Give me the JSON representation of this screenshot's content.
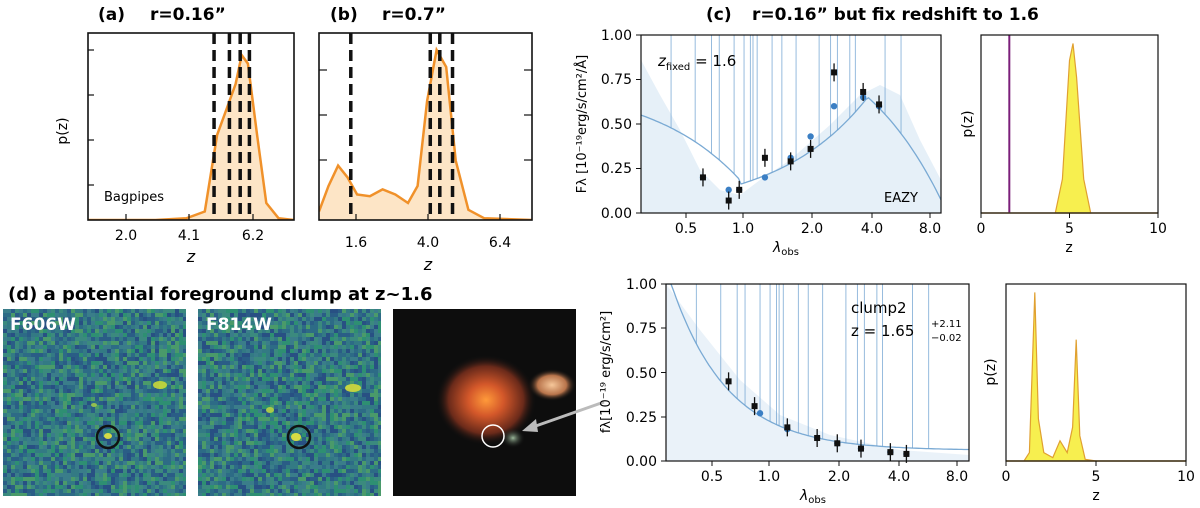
{
  "panel_a": {
    "label": "(a)",
    "title": "r=0.16”",
    "annotation": "Bagpipes",
    "xlabel": "z",
    "ylabel": "p(z)",
    "ticks": [
      "2.0",
      "4.1",
      "6.2"
    ]
  },
  "panel_b": {
    "label": "(b)",
    "title": "r=0.7”",
    "xlabel": "z",
    "ticks": [
      "1.6",
      "4.0",
      "6.4"
    ]
  },
  "panel_c": {
    "label": "(c)",
    "title": "r=0.16” but fix redshift to 1.6",
    "zfixed": "z",
    "zfixed_sub": "fixed",
    "zfixed_val": " = 1.6",
    "annotation": "EAZY",
    "ylabel": "Fλ [10⁻¹⁹erg/s/cm²/Å]",
    "xlabel": "λ",
    "xlabel_sub": "obs",
    "yticks": [
      "1.00",
      "0.75",
      "0.50",
      "0.25",
      "0.00"
    ],
    "xticks": [
      "0.5",
      "1.0",
      "2.0",
      "4.0",
      "8.0"
    ],
    "pz_ylabel": "p(z)",
    "pz_xlabel": "z",
    "pz_xticks": [
      "0",
      "5",
      "10"
    ]
  },
  "panel_d": {
    "label": "(d) a potential foreground clump at z~1.6",
    "img1": "F606W",
    "img2": "F814W",
    "annotation_name": "clump2",
    "annotation_z": "z = 1.65",
    "annotation_z_up": "+2.11",
    "annotation_z_low": "−0.02",
    "ylabel": "fλ[10⁻¹⁹ erg/s/cm²]",
    "xlabel": "λ",
    "xlabel_sub": "obs",
    "yticks": [
      "1.00",
      "0.75",
      "0.50",
      "0.25",
      "0.00"
    ],
    "xticks": [
      "0.5",
      "1.0",
      "2.0",
      "4.0",
      "8.0"
    ],
    "pz_ylabel": "p(z)",
    "pz_xlabel": "z",
    "pz_xticks": [
      "0",
      "5",
      "10"
    ]
  },
  "colors": {
    "orange": "#f0912a",
    "orange_fill": "#fde5c6",
    "blue": "#5b95c8",
    "light_blue": "#a9c8e3",
    "yellow": "#f7ef4f",
    "purple": "#7b1f7a"
  },
  "chart_data": [
    {
      "type": "area",
      "name": "pz-bagpipes-r016",
      "x": [
        0.8,
        2,
        3,
        4,
        4.6,
        5,
        5.3,
        5.6,
        5.8,
        6,
        6.3,
        6.6,
        7,
        7.5
      ],
      "y": [
        0,
        0,
        0,
        0.01,
        0.05,
        0.5,
        0.65,
        0.8,
        0.97,
        0.92,
        0.5,
        0.1,
        0.01,
        0
      ],
      "vlines": [
        4.9,
        5.4,
        5.75,
        6.05
      ],
      "xlim": [
        0.8,
        7.5
      ]
    },
    {
      "type": "area",
      "name": "pz-r07",
      "x": [
        0.8,
        1.1,
        1.4,
        1.7,
        2,
        2.4,
        2.8,
        3.2,
        3.6,
        3.9,
        4.2,
        4.5,
        4.8,
        5.1,
        5.5,
        6,
        7.5
      ],
      "y": [
        0.05,
        0.2,
        0.32,
        0.25,
        0.15,
        0.14,
        0.18,
        0.15,
        0.1,
        0.2,
        0.7,
        1.0,
        0.9,
        0.35,
        0.06,
        0.01,
        0
      ],
      "vlines": [
        1.8,
        4.3,
        4.6,
        5.0
      ],
      "xlim": [
        0.8,
        7.5
      ]
    },
    {
      "type": "scatter",
      "name": "sed-fixed-z1.6",
      "obs_x": [
        0.6,
        0.8,
        0.9,
        1.2,
        1.6,
        2.0,
        2.6,
        3.6,
        4.3
      ],
      "obs_y": [
        0.2,
        0.07,
        0.13,
        0.31,
        0.29,
        0.36,
        0.79,
        0.68,
        0.61
      ],
      "model_x": [
        0.6,
        0.8,
        0.9,
        1.2,
        1.6,
        2.0,
        2.6,
        3.6,
        4.3
      ],
      "model_y": [
        0.2,
        0.13,
        0.13,
        0.2,
        0.31,
        0.43,
        0.6,
        0.65,
        0.6
      ],
      "ylim": [
        0,
        1
      ]
    },
    {
      "type": "area",
      "name": "pz-fixed",
      "x": [
        4.2,
        4.6,
        5.0,
        5.2,
        5.4,
        5.8,
        6.2
      ],
      "y": [
        0,
        0.2,
        0.9,
        1.0,
        0.8,
        0.2,
        0
      ],
      "vline": 1.6,
      "xlim": [
        0,
        10
      ]
    },
    {
      "type": "scatter",
      "name": "sed-clump2",
      "obs_x": [
        0.6,
        0.8,
        1.15,
        1.6,
        2.0,
        2.6,
        3.6,
        4.3
      ],
      "obs_y": [
        0.45,
        0.31,
        0.19,
        0.13,
        0.1,
        0.07,
        0.05,
        0.04
      ],
      "model_x": [
        0.85,
        1.15,
        1.6,
        2.0,
        2.6,
        3.6,
        4.3
      ],
      "model_y": [
        0.27,
        0.18,
        0.13,
        0.1,
        0.07,
        0.05,
        0.04
      ],
      "ylim": [
        0,
        1
      ]
    },
    {
      "type": "area",
      "name": "pz-clump2",
      "x": [
        0,
        1,
        1.3,
        1.6,
        1.8,
        2.1,
        2.6,
        3.0,
        3.4,
        3.7,
        3.9,
        4.1,
        4.4,
        5,
        10
      ],
      "y": [
        0,
        0,
        0.05,
        1.0,
        0.25,
        0.05,
        0.02,
        0.12,
        0.05,
        0.2,
        0.72,
        0.15,
        0.01,
        0,
        0
      ],
      "xlim": [
        0,
        10
      ]
    }
  ]
}
